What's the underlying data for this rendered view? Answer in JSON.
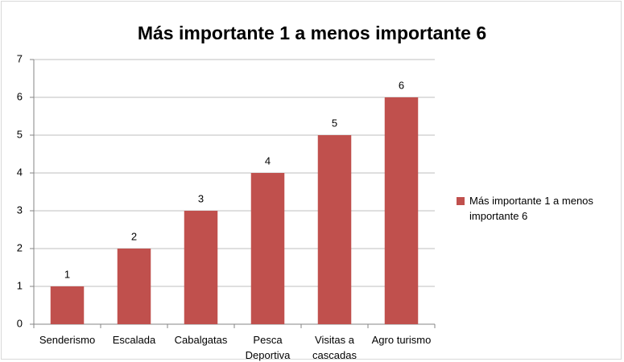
{
  "chart_data": {
    "type": "bar",
    "title": "Más importante 1 a menos importante 6",
    "categories": [
      "Senderismo",
      "Escalada",
      "Cabalgatas",
      "Pesca Deportiva",
      "Visitas a cascadas",
      "Agro turismo"
    ],
    "series": [
      {
        "name": "Más importante 1 a menos importante 6",
        "color": "#c0504d",
        "values": [
          1,
          2,
          3,
          4,
          5,
          6
        ]
      }
    ],
    "ylim": [
      0,
      7
    ],
    "yticks": [
      0,
      1,
      2,
      3,
      4,
      5,
      6,
      7
    ],
    "grid": true,
    "legend": "right"
  }
}
